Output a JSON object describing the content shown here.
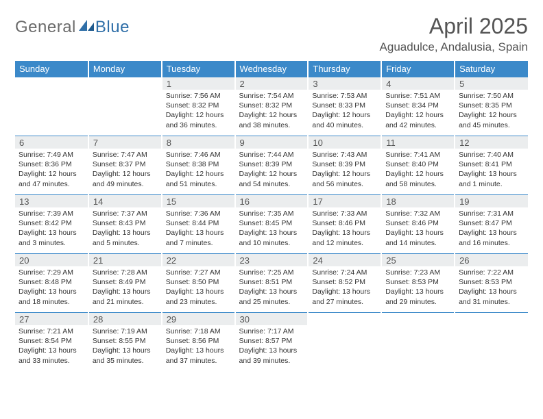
{
  "brand": {
    "part1": "General",
    "part2": "Blue"
  },
  "title": "April 2025",
  "location": "Aguadulce, Andalusia, Spain",
  "colors": {
    "header_bg": "#3b89c9",
    "daynum_bg": "#ebedee",
    "border": "#3b89c9",
    "text": "#333333",
    "title": "#555555"
  },
  "weekdays": [
    "Sunday",
    "Monday",
    "Tuesday",
    "Wednesday",
    "Thursday",
    "Friday",
    "Saturday"
  ],
  "first_weekday_index": 2,
  "days": [
    {
      "n": 1,
      "sunrise": "7:56 AM",
      "sunset": "8:32 PM",
      "daylight": "12 hours and 36 minutes."
    },
    {
      "n": 2,
      "sunrise": "7:54 AM",
      "sunset": "8:32 PM",
      "daylight": "12 hours and 38 minutes."
    },
    {
      "n": 3,
      "sunrise": "7:53 AM",
      "sunset": "8:33 PM",
      "daylight": "12 hours and 40 minutes."
    },
    {
      "n": 4,
      "sunrise": "7:51 AM",
      "sunset": "8:34 PM",
      "daylight": "12 hours and 42 minutes."
    },
    {
      "n": 5,
      "sunrise": "7:50 AM",
      "sunset": "8:35 PM",
      "daylight": "12 hours and 45 minutes."
    },
    {
      "n": 6,
      "sunrise": "7:49 AM",
      "sunset": "8:36 PM",
      "daylight": "12 hours and 47 minutes."
    },
    {
      "n": 7,
      "sunrise": "7:47 AM",
      "sunset": "8:37 PM",
      "daylight": "12 hours and 49 minutes."
    },
    {
      "n": 8,
      "sunrise": "7:46 AM",
      "sunset": "8:38 PM",
      "daylight": "12 hours and 51 minutes."
    },
    {
      "n": 9,
      "sunrise": "7:44 AM",
      "sunset": "8:39 PM",
      "daylight": "12 hours and 54 minutes."
    },
    {
      "n": 10,
      "sunrise": "7:43 AM",
      "sunset": "8:39 PM",
      "daylight": "12 hours and 56 minutes."
    },
    {
      "n": 11,
      "sunrise": "7:41 AM",
      "sunset": "8:40 PM",
      "daylight": "12 hours and 58 minutes."
    },
    {
      "n": 12,
      "sunrise": "7:40 AM",
      "sunset": "8:41 PM",
      "daylight": "13 hours and 1 minute."
    },
    {
      "n": 13,
      "sunrise": "7:39 AM",
      "sunset": "8:42 PM",
      "daylight": "13 hours and 3 minutes."
    },
    {
      "n": 14,
      "sunrise": "7:37 AM",
      "sunset": "8:43 PM",
      "daylight": "13 hours and 5 minutes."
    },
    {
      "n": 15,
      "sunrise": "7:36 AM",
      "sunset": "8:44 PM",
      "daylight": "13 hours and 7 minutes."
    },
    {
      "n": 16,
      "sunrise": "7:35 AM",
      "sunset": "8:45 PM",
      "daylight": "13 hours and 10 minutes."
    },
    {
      "n": 17,
      "sunrise": "7:33 AM",
      "sunset": "8:46 PM",
      "daylight": "13 hours and 12 minutes."
    },
    {
      "n": 18,
      "sunrise": "7:32 AM",
      "sunset": "8:46 PM",
      "daylight": "13 hours and 14 minutes."
    },
    {
      "n": 19,
      "sunrise": "7:31 AM",
      "sunset": "8:47 PM",
      "daylight": "13 hours and 16 minutes."
    },
    {
      "n": 20,
      "sunrise": "7:29 AM",
      "sunset": "8:48 PM",
      "daylight": "13 hours and 18 minutes."
    },
    {
      "n": 21,
      "sunrise": "7:28 AM",
      "sunset": "8:49 PM",
      "daylight": "13 hours and 21 minutes."
    },
    {
      "n": 22,
      "sunrise": "7:27 AM",
      "sunset": "8:50 PM",
      "daylight": "13 hours and 23 minutes."
    },
    {
      "n": 23,
      "sunrise": "7:25 AM",
      "sunset": "8:51 PM",
      "daylight": "13 hours and 25 minutes."
    },
    {
      "n": 24,
      "sunrise": "7:24 AM",
      "sunset": "8:52 PM",
      "daylight": "13 hours and 27 minutes."
    },
    {
      "n": 25,
      "sunrise": "7:23 AM",
      "sunset": "8:53 PM",
      "daylight": "13 hours and 29 minutes."
    },
    {
      "n": 26,
      "sunrise": "7:22 AM",
      "sunset": "8:53 PM",
      "daylight": "13 hours and 31 minutes."
    },
    {
      "n": 27,
      "sunrise": "7:21 AM",
      "sunset": "8:54 PM",
      "daylight": "13 hours and 33 minutes."
    },
    {
      "n": 28,
      "sunrise": "7:19 AM",
      "sunset": "8:55 PM",
      "daylight": "13 hours and 35 minutes."
    },
    {
      "n": 29,
      "sunrise": "7:18 AM",
      "sunset": "8:56 PM",
      "daylight": "13 hours and 37 minutes."
    },
    {
      "n": 30,
      "sunrise": "7:17 AM",
      "sunset": "8:57 PM",
      "daylight": "13 hours and 39 minutes."
    }
  ],
  "labels": {
    "sunrise": "Sunrise:",
    "sunset": "Sunset:",
    "daylight": "Daylight:"
  }
}
